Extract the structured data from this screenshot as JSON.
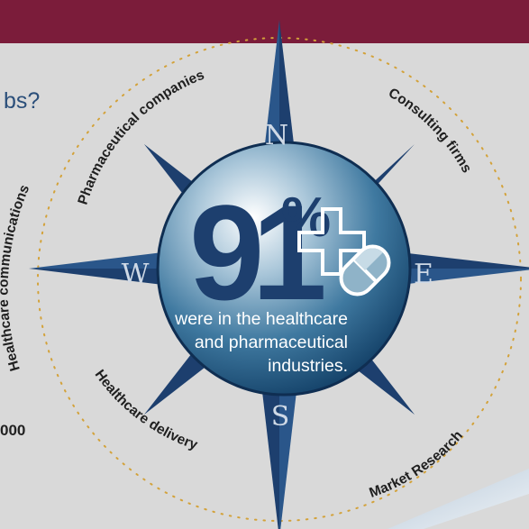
{
  "header": {
    "band_color": "#7b1c3a"
  },
  "fragments": {
    "question_tail": "bs?",
    "number_tail": "000"
  },
  "compass": {
    "directions": {
      "north": "N",
      "south": "S",
      "east": "E",
      "west": "W"
    },
    "star_color": "#1d3f6e",
    "sector_labels": {
      "top_left": "Pharmaceutical companies",
      "top_right": "Consulting firms",
      "left": "Healthcare communications",
      "bottom_left": "Healthcare delivery",
      "bottom_right": "Market Research"
    }
  },
  "stat": {
    "number": "91",
    "percent_sign": "%",
    "caption_line1": "were in the healthcare",
    "caption_line2": "and pharmaceutical",
    "caption_line3": "industries.",
    "icon": "pill-medical-cross-icon"
  }
}
